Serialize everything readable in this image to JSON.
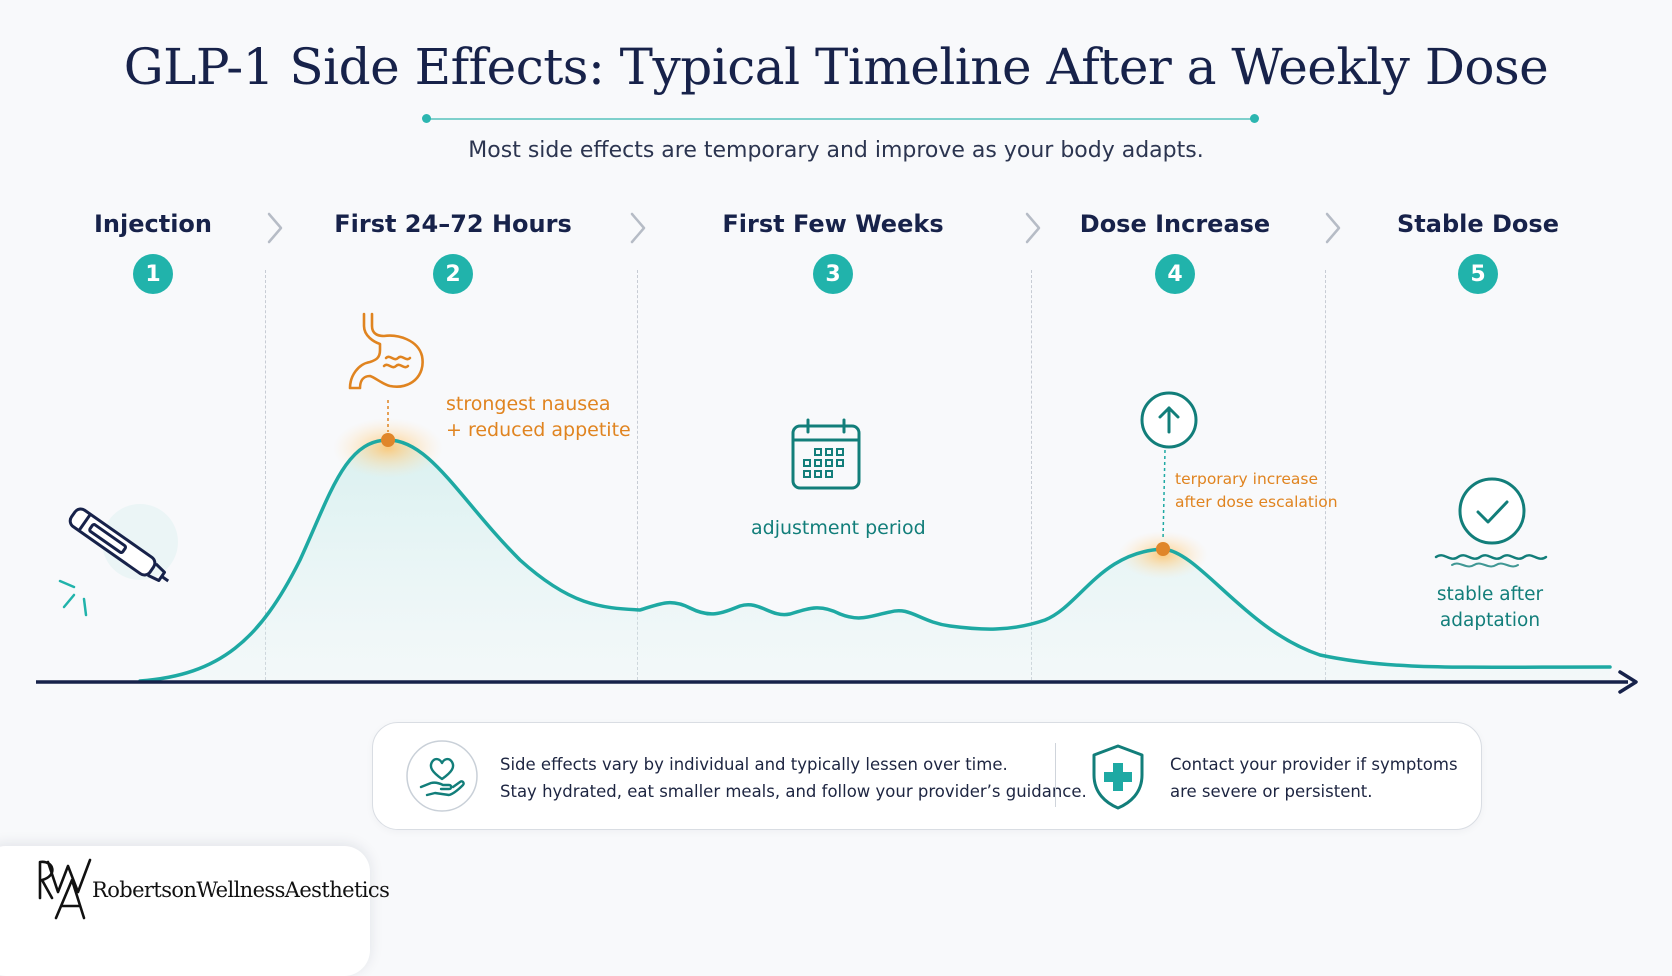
{
  "header": {
    "title": "GLP-1 Side Effects: Typical Timeline After a Weekly Dose",
    "subtitle": "Most side effects are temporary and improve as your body adapts."
  },
  "stages": [
    {
      "number": "1",
      "label": "Injection"
    },
    {
      "number": "2",
      "label": "First 24–72 Hours"
    },
    {
      "number": "3",
      "label": "First Few Weeks"
    },
    {
      "number": "4",
      "label": "Dose Increase"
    },
    {
      "number": "5",
      "label": "Stable Dose"
    }
  ],
  "annotations": {
    "peak_line1": "strongest nausea",
    "peak_line2": "+ reduced appetite",
    "adjustment": "adjustment period",
    "dose_line1": "terporary increase",
    "dose_line2": "after dose escalation",
    "stable_line1": "stable after",
    "stable_line2": "adaptation"
  },
  "icons": {
    "injection": "injection-pen-icon",
    "peak": "stomach-icon",
    "adjustment": "calendar-icon",
    "dose": "arrow-up-circle-icon",
    "stable": "check-circle-icon",
    "info_left": "heart-in-hand-icon",
    "info_right": "medical-shield-icon"
  },
  "info": {
    "left_line1": "Side effects vary by individual and typically lessen over time.",
    "left_line2": "Stay hydrated, eat smaller meals, and follow your provider’s guidance.",
    "right_line1": "Contact your provider if symptoms",
    "right_line2": "are severe or persistent."
  },
  "brand": {
    "monogram": "RWA",
    "name": "RobertsonWellnessAesthetics"
  },
  "colors": {
    "teal": "#21b3ab",
    "navy": "#17224a",
    "orange": "#e08420"
  }
}
